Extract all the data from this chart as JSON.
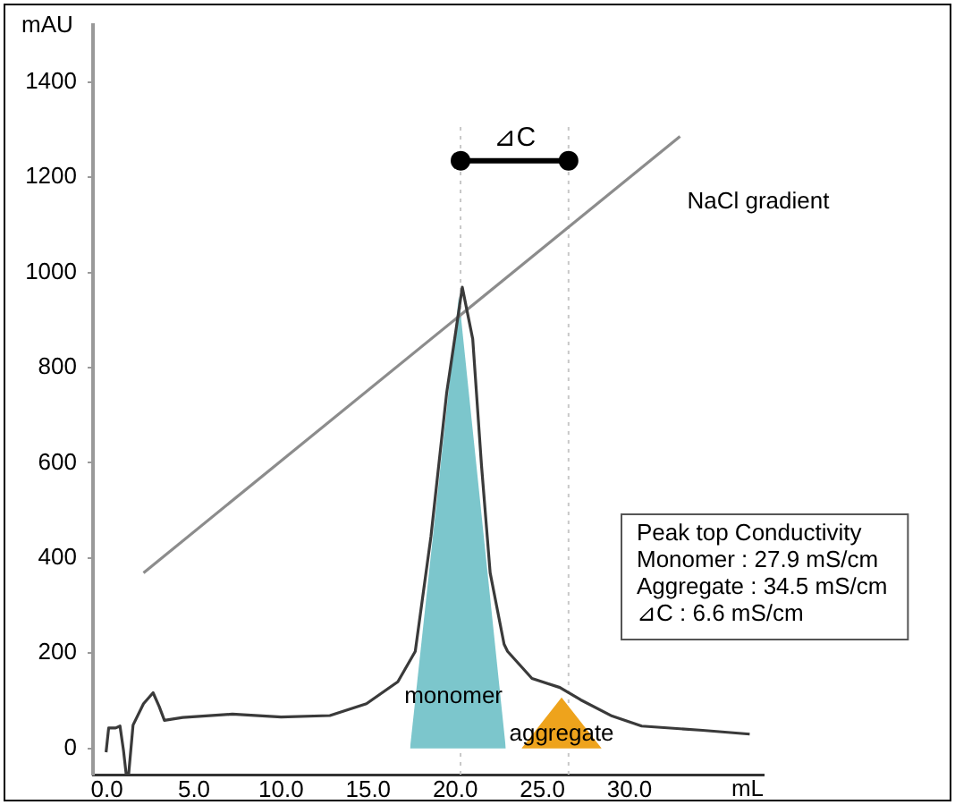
{
  "chart_data": {
    "type": "line",
    "xlabel": "mL",
    "ylabel": "mAU",
    "xlim": [
      -0.8,
      37.7
    ],
    "xticks": [
      {
        "value": 0,
        "label": "0.0"
      },
      {
        "value": 5,
        "label": "5.0"
      },
      {
        "value": 10,
        "label": "10.0"
      },
      {
        "value": 15,
        "label": "15.0"
      },
      {
        "value": 20,
        "label": "20.0"
      },
      {
        "value": 25,
        "label": "25.0"
      },
      {
        "value": 30,
        "label": "30.0"
      }
    ],
    "ylim": [
      -55,
      1520
    ],
    "yticks": [
      0,
      200,
      400,
      600,
      800,
      1000,
      1200,
      1400
    ],
    "grid": false,
    "legend": false,
    "marker": "none",
    "line_style": "solid",
    "series": [
      {
        "type": "area",
        "name": "monomer",
        "color": "#7cc6cc",
        "x": [
          17.4,
          20.2,
          22.9
        ],
        "values": [
          0,
          950,
          0
        ]
      },
      {
        "type": "area",
        "name": "aggregate",
        "color": "#eea31c",
        "x": [
          23.8,
          26.1,
          28.4
        ],
        "values": [
          0,
          107,
          0
        ]
      },
      {
        "color": "#3a3a3a",
        "x": [
          -0.05,
          0.1,
          0.5,
          0.75,
          0.95,
          1.1,
          1.25,
          1.5,
          2.1,
          2.65,
          3.0,
          3.3,
          4.35,
          7.2,
          10.0,
          12.8,
          14.9,
          16.7,
          17.7,
          18.6,
          19.5,
          20.4,
          21.0,
          21.5,
          22.0,
          22.8,
          23.0,
          24.4,
          26.0,
          27.2,
          29.0,
          30.7,
          34.2,
          36.9
        ],
        "values": [
          -8,
          43,
          43,
          47,
          -4,
          -53,
          -53,
          49,
          94,
          117,
          88,
          59,
          65,
          72,
          66,
          69,
          94,
          140,
          204,
          445,
          746,
          969,
          860,
          596,
          369,
          219,
          204,
          147,
          128,
          102,
          68,
          47,
          38,
          30
        ]
      },
      {
        "name": "NaCl gradient",
        "color": "#8c8c8c",
        "x": [
          2.1,
          32.9
        ],
        "values": [
          369,
          1286
        ]
      },
      {
        "color": "#000000",
        "marker": "circle",
        "x": [
          20.3,
          26.5
        ],
        "values": [
          1235,
          1235
        ]
      }
    ],
    "ref_lines": [
      {
        "axis": "x",
        "value": 20.3,
        "color": "#c8c8c8",
        "line_style": "dotted"
      },
      {
        "axis": "x",
        "value": 26.5,
        "color": "#c8c8c8",
        "line_style": "dotted"
      }
    ],
    "annotations": [
      {
        "text": "⊿C",
        "x": 23.4,
        "y": 1235
      },
      "Peak top Conductivity",
      "Monomer : 27.9 mS/cm",
      "Aggregate : 34.5 mS/cm",
      "⊿C : 6.6 mS/cm"
    ]
  }
}
